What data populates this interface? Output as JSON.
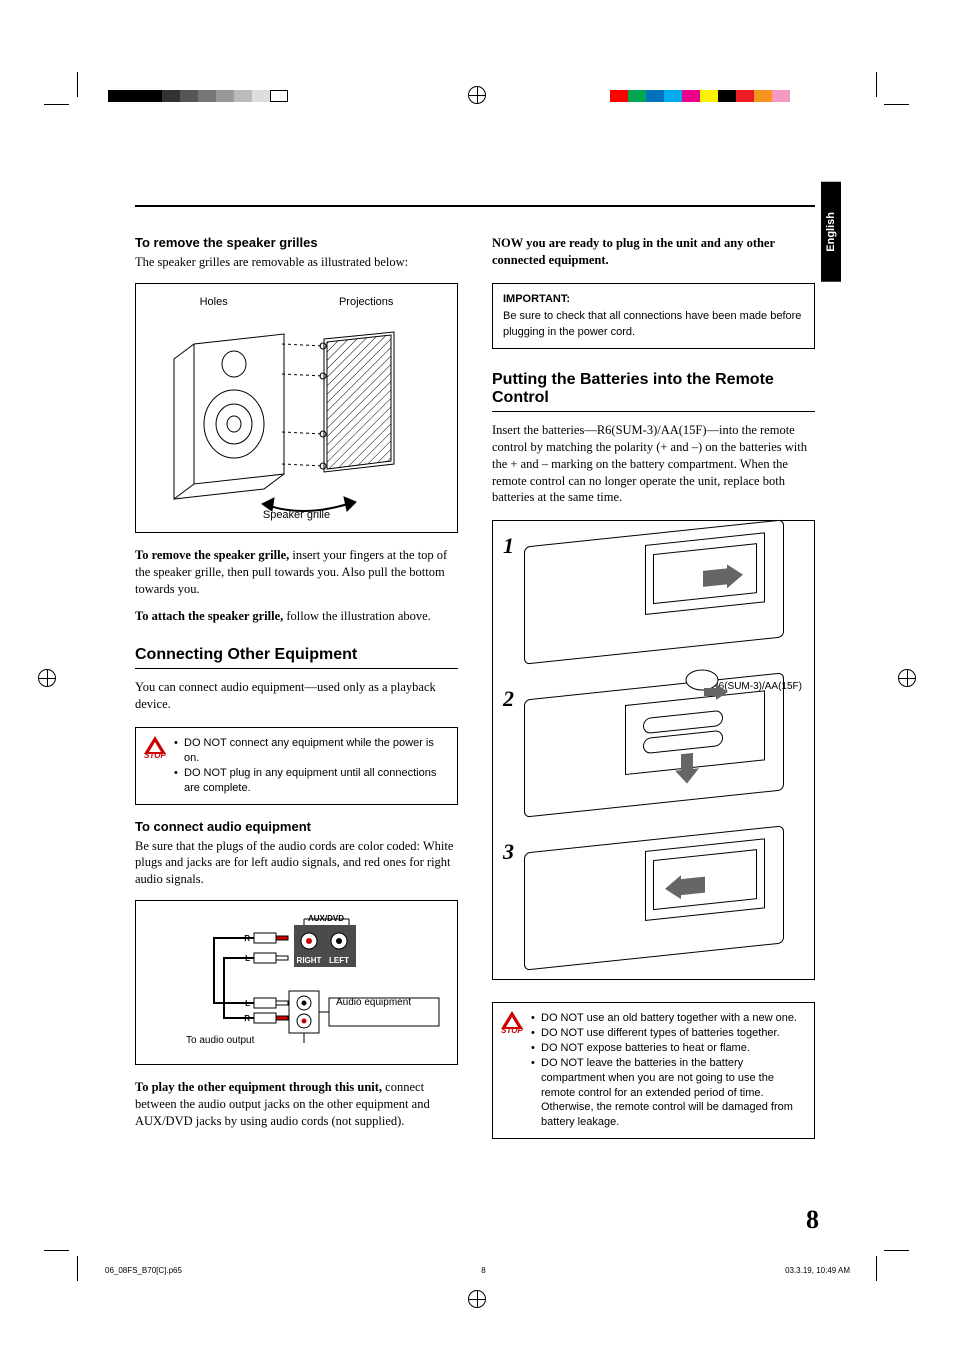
{
  "lang_tab": "English",
  "page_number": "8",
  "footer": {
    "file": "06_08FS_B70[C].p65",
    "page": "8",
    "date": "03.3.19, 10:49 AM"
  },
  "color_bars": {
    "left": [
      "#000000",
      "#000000",
      "#000000",
      "#333333",
      "#555555",
      "#777777",
      "#999999",
      "#bbbbbb",
      "#dddddd",
      "#ffffff"
    ],
    "right": [
      "#ff0000",
      "#00a651",
      "#0072bc",
      "#00aeef",
      "#ec008c",
      "#fff200",
      "#000000",
      "#ed1c24",
      "#f7941d",
      "#f49ac1"
    ]
  },
  "left_col": {
    "grilles": {
      "heading": "To remove the speaker grilles",
      "intro": "The speaker grilles are removable as illustrated below:",
      "labels": {
        "holes": "Holes",
        "projections": "Projections",
        "grille": "Speaker grille"
      },
      "remove_label": "To remove the speaker grille,",
      "remove_text": " insert your fingers at the top of the speaker grille, then pull towards you. Also pull the bottom towards you.",
      "attach_label": "To attach the speaker grille,",
      "attach_text": " follow the illustration above."
    },
    "connecting": {
      "heading": "Connecting Other Equipment",
      "intro": "You can connect audio equipment—used only as a playback device.",
      "warn": [
        "DO NOT connect any equipment while the power is on.",
        "DO NOT plug in any equipment until all connections are complete."
      ],
      "audio_heading": "To connect audio equipment",
      "audio_intro": "Be sure that the plugs of the audio cords are color coded: White plugs and jacks are for left audio signals, and red ones for right audio signals.",
      "diagram": {
        "aux": "AUX/DVD",
        "right": "RIGHT",
        "left": "LEFT",
        "R": "R",
        "L": "L",
        "equip": "Audio equipment",
        "output": "To audio output"
      },
      "play_label": "To play the other equipment through this unit,",
      "play_text": " connect between the audio output jacks on the other equipment and AUX/DVD jacks by using audio cords (not supplied)."
    }
  },
  "right_col": {
    "now": "NOW you are ready to plug in the unit and any other connected equipment.",
    "important": {
      "title": "IMPORTANT:",
      "text": "Be sure to check that all connections have been made before plugging in the power cord."
    },
    "batteries": {
      "heading": "Putting the Batteries into the Remote Control",
      "intro": "Insert the batteries—R6(SUM-3)/AA(15F)—into the remote control by matching the polarity (+ and –) on the batteries with the + and – marking on the battery compartment. When the remote control can no longer operate the unit, replace both batteries at the same time.",
      "battery_label": "R6(SUM-3)/AA(15F)",
      "steps": [
        "1",
        "2",
        "3"
      ],
      "warn": [
        "DO NOT use an old battery together with a new one.",
        "DO NOT use different types of batteries together.",
        "DO NOT expose batteries to heat or flame.",
        "DO NOT leave the batteries in the battery compartment when you are not going to use the remote control for an extended period of time. Otherwise, the remote control will be damaged from battery leakage."
      ]
    }
  }
}
